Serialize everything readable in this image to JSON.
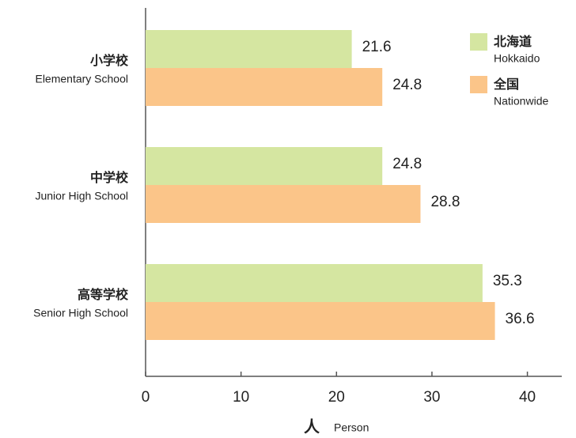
{
  "chart_data": {
    "type": "barh",
    "categories": [
      {
        "ja": "小学校",
        "en": "Elementary School"
      },
      {
        "ja": "中学校",
        "en": "Junior High School"
      },
      {
        "ja": "高等学校",
        "en": "Senior High School"
      }
    ],
    "series": [
      {
        "name": "北海道",
        "name_en": "Hokkaido",
        "color": "#d5e6a1",
        "values": [
          21.6,
          24.8,
          35.3
        ]
      },
      {
        "name": "全国",
        "name_en": "Nationwide",
        "color": "#fbc589",
        "values": [
          24.8,
          28.8,
          36.6
        ]
      }
    ],
    "xlim": [
      0,
      43.6
    ],
    "xticks": [
      0,
      10,
      20,
      30,
      40
    ],
    "x_label": {
      "ja": "人",
      "en": "Person"
    },
    "legend": "upper right"
  }
}
